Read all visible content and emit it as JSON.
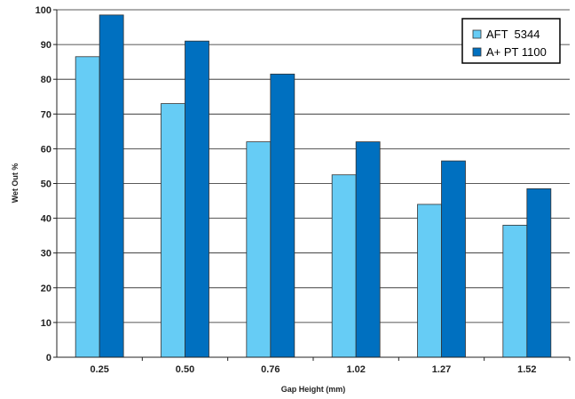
{
  "chart_data": {
    "type": "bar",
    "categories": [
      "0.25",
      "0.50",
      "0.76",
      "1.02",
      "1.27",
      "1.52"
    ],
    "series": [
      {
        "name": "AFT  5344",
        "color": "#66ccf5",
        "values": [
          86.5,
          73,
          62,
          52.5,
          44,
          38
        ]
      },
      {
        "name": "A+ PT 1100",
        "color": "#0070c0",
        "values": [
          98.5,
          91,
          81.5,
          62,
          56.5,
          48.5
        ]
      }
    ],
    "xlabel": "Gap Height (mm)",
    "ylabel": "Wet Out %",
    "ylim": [
      0,
      100
    ],
    "yticks": [
      "0",
      "10",
      "20",
      "30",
      "40",
      "50",
      "60",
      "70",
      "80",
      "90",
      "100"
    ],
    "grid": true,
    "legend": "top-right"
  }
}
